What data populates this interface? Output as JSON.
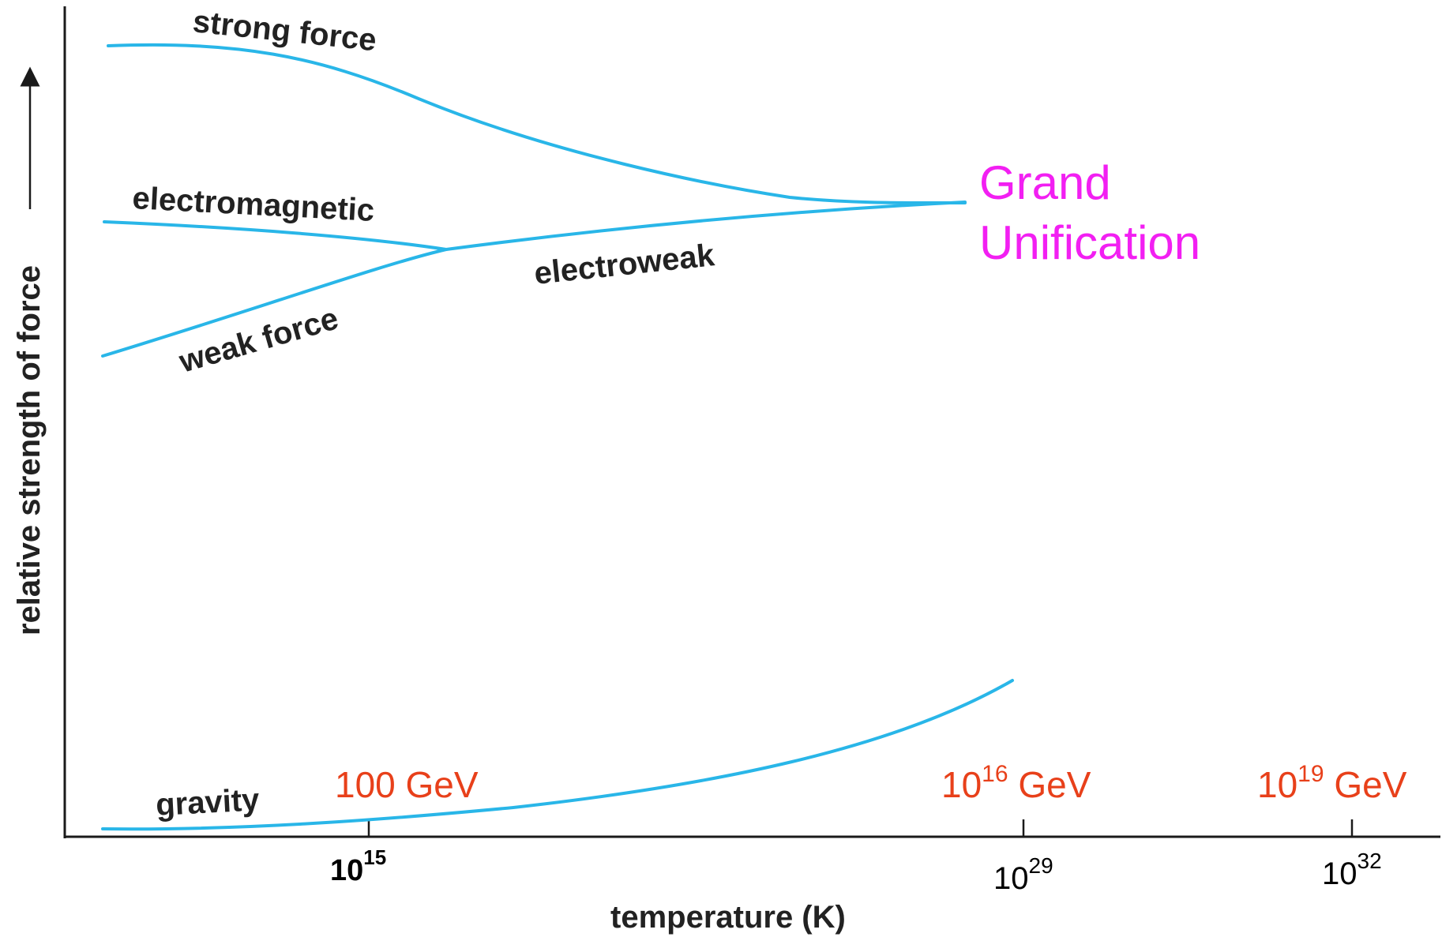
{
  "colors": {
    "curve": "#29b6e8",
    "energy_label": "#e8401a",
    "gut_label": "#f21ff2",
    "axis": "#1a1a1a"
  },
  "axes": {
    "ylabel": "relative strength of force",
    "xlabel": "temperature (K)"
  },
  "ticks": [
    {
      "id": "t15",
      "base": "10",
      "exp": "15"
    },
    {
      "id": "t29",
      "base": "10",
      "exp": "29"
    },
    {
      "id": "t32",
      "base": "10",
      "exp": "32"
    }
  ],
  "energies": [
    {
      "id": "e100",
      "text": "100 GeV"
    },
    {
      "id": "e16",
      "base": "10",
      "exp": "16",
      "unit": " GeV"
    },
    {
      "id": "e19",
      "base": "10",
      "exp": "19",
      "unit": " GeV"
    }
  ],
  "forces": {
    "strong": "strong force",
    "electromagnetic": "electromagnetic",
    "weak": "weak force",
    "electroweak": "electroweak",
    "gravity": "gravity"
  },
  "unification": {
    "line1": "Grand",
    "line2": "Unification"
  }
}
